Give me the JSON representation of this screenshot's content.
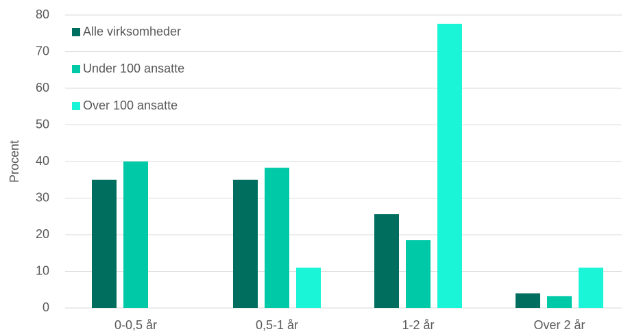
{
  "chart_data": {
    "type": "bar",
    "ylabel": "Procent",
    "categories": [
      "0-0,5 år",
      "0,5-1 år",
      "1-2 år",
      "Over 2 år"
    ],
    "series": [
      {
        "name": "Alle virksomheder",
        "color": "#006e5f",
        "values": [
          35,
          35,
          25.6,
          4
        ]
      },
      {
        "name": "Under 100 ansatte",
        "color": "#00c9a7",
        "values": [
          40,
          38.3,
          18.5,
          3.2
        ]
      },
      {
        "name": "Over 100 ansatte",
        "color": "#1af5d8",
        "values": [
          null,
          11,
          77.6,
          11
        ]
      }
    ],
    "ylim": [
      0,
      80
    ],
    "yticks": [
      0,
      10,
      20,
      30,
      40,
      50,
      60,
      70,
      80
    ],
    "grid": true,
    "legend": "upper left"
  }
}
